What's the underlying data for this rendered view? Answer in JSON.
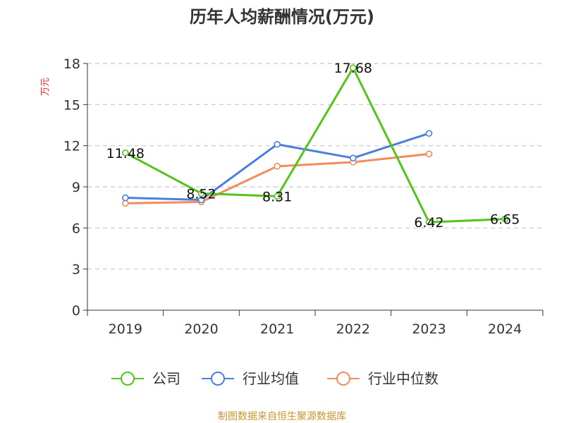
{
  "chart_data": {
    "type": "line",
    "title": "历年人均薪酬情况(万元)",
    "ylabel": "万元",
    "xlabel": "",
    "categories": [
      "2019",
      "2020",
      "2021",
      "2022",
      "2023",
      "2024"
    ],
    "ylim": [
      0,
      18
    ],
    "yticks": [
      0,
      3,
      6,
      9,
      12,
      15,
      18
    ],
    "grid": true,
    "legend_position": "bottom",
    "series": [
      {
        "name": "公司",
        "color": "#52c41a",
        "values": [
          11.48,
          8.52,
          8.31,
          17.68,
          6.42,
          6.65
        ],
        "labels": [
          "11.48",
          "8.52",
          "8.31",
          "17.68",
          "6.42",
          "6.65"
        ]
      },
      {
        "name": "行业均值",
        "color": "#4a7fdc",
        "values": [
          8.2,
          8.05,
          12.1,
          11.1,
          12.9,
          null
        ]
      },
      {
        "name": "行业中位数",
        "color": "#f28c5a",
        "values": [
          7.8,
          7.9,
          10.5,
          10.8,
          11.4,
          null
        ]
      }
    ]
  },
  "source": "制图数据来自恒生聚源数据库",
  "colors": {
    "ylabel": "#e0302f",
    "source": "#c9962f",
    "axis": "#333333",
    "grid": "#c8c8c8"
  }
}
